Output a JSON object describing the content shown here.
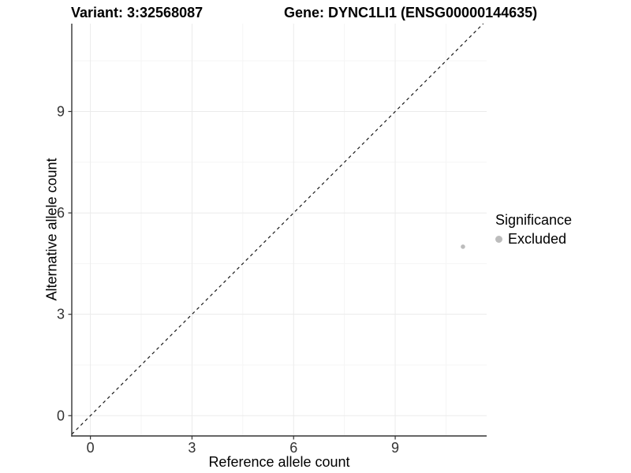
{
  "header": {
    "variant_title": "Variant: 3:32568087",
    "gene_title": "Gene: DYNC1LI1 (ENSG00000144635)"
  },
  "chart_data": {
    "type": "scatter",
    "titles": [
      "Variant: 3:32568087",
      "Gene: DYNC1LI1 (ENSG00000144635)"
    ],
    "xlabel": "Reference allele count",
    "ylabel": "Alternative allele count",
    "x_ticks": [
      0,
      3,
      6,
      9
    ],
    "y_ticks": [
      0,
      3,
      6,
      9
    ],
    "x_minor_ticks": [
      1.5,
      4.5,
      7.5,
      10.5
    ],
    "y_minor_ticks": [
      1.5,
      4.5,
      7.5,
      10.5
    ],
    "xlim": [
      -0.55,
      11.7
    ],
    "ylim": [
      -0.6,
      11.6
    ],
    "grid": true,
    "identity_line": {
      "show": true,
      "slope": 1,
      "intercept": 0,
      "style": "dashed"
    },
    "points": [
      {
        "x": 11,
        "y": 5,
        "series": "Excluded"
      }
    ],
    "legend": {
      "title": "Significance",
      "position": "right",
      "items": [
        {
          "label": "Excluded",
          "color": "#bcbcbc"
        }
      ]
    },
    "colors": {
      "point": "#bcbcbc",
      "grid_major": "#ebebeb",
      "grid_minor": "#f5f5f5",
      "axis": "#333333",
      "tick_label": "#333333",
      "identity_line": "#1a1a1a"
    }
  }
}
